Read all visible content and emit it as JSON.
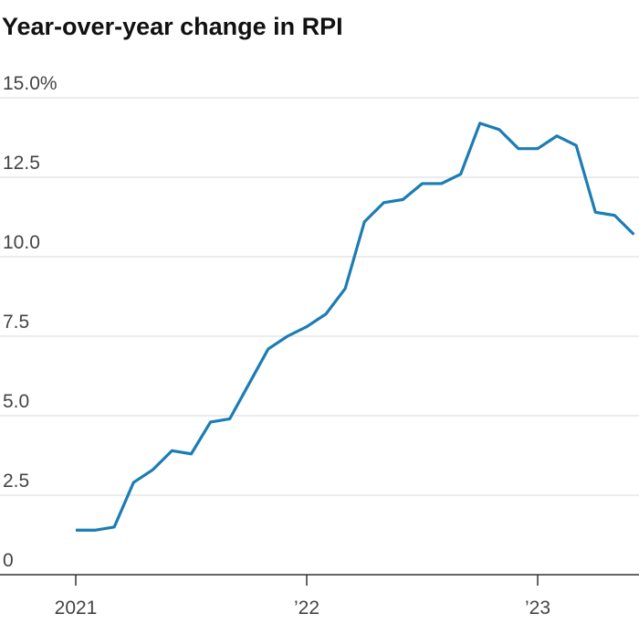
{
  "chart_data": {
    "type": "line",
    "title": "Year-over-year change in RPI",
    "categories": [
      "2021",
      null,
      null,
      null,
      null,
      null,
      null,
      null,
      null,
      null,
      null,
      null,
      "’22",
      null,
      null,
      null,
      null,
      null,
      null,
      null,
      null,
      null,
      null,
      null,
      "’23",
      null,
      null,
      null,
      null,
      null
    ],
    "series": [
      {
        "color": "#1b7db3",
        "values": [
          1.4,
          1.4,
          1.5,
          2.9,
          3.3,
          3.9,
          3.8,
          4.8,
          4.9,
          6.0,
          7.1,
          7.5,
          7.8,
          8.2,
          9.0,
          11.1,
          11.7,
          11.8,
          12.3,
          12.3,
          12.6,
          14.2,
          14.0,
          13.4,
          13.4,
          13.8,
          13.5,
          11.4,
          11.3,
          10.7
        ]
      }
    ],
    "ylim": [
      0,
      15
    ],
    "yticks": [
      0,
      2.5,
      {
        "value": 5,
        "label": "5.0"
      },
      7.5,
      {
        "value": 10,
        "label": "10.0"
      },
      12.5,
      {
        "value": 15,
        "label": "15.0%"
      }
    ],
    "grid": true
  }
}
